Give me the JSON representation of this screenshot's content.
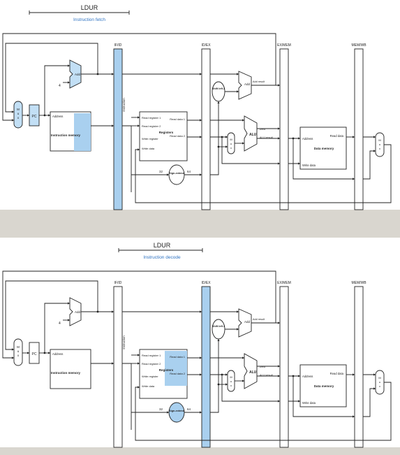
{
  "diagrams": [
    {
      "stage_title": "LDUR",
      "stage_caption": "Instruction fetch",
      "labels": {
        "if_id": "IF/ID",
        "id_ex": "ID/EX",
        "ex_mem": "EX/MEM",
        "mem_wb": "MEM/WB",
        "instruction": "Instruction",
        "add": "Add",
        "add2": "Add",
        "add_result": "Add result",
        "four": "4",
        "mux": "M u x",
        "pc": "PC",
        "address": "Address",
        "imem": "Instruction memory",
        "read_reg1": "Read register 1",
        "read_reg2": "Read register 2",
        "write_reg": "Write register",
        "write_data": "Write data",
        "read_data1": "Read data 1",
        "read_data2": "Read data 2",
        "registers": "Registers",
        "shift": "Shift left 2",
        "alu": "ALU",
        "zero": "Zero",
        "alu_result": "ALU result",
        "sign": "Sign-extend",
        "w32": "32",
        "w64": "64",
        "dmem_address": "Address",
        "dmem_read": "Read data",
        "dmem": "Data memory",
        "dmem_write": "Write data"
      }
    },
    {
      "stage_title": "LDUR",
      "stage_caption": "Instruction decode",
      "labels": {
        "if_id": "IF/ID",
        "id_ex": "ID/EX",
        "ex_mem": "EX/MEM",
        "mem_wb": "MEM/WB",
        "instruction": "Instruction",
        "add": "Add",
        "add2": "Add",
        "add_result": "Add result",
        "four": "4",
        "mux": "M u x",
        "pc": "PC",
        "address": "Address",
        "imem": "Instruction memory",
        "read_reg1": "Read register 1",
        "read_reg2": "Read register 2",
        "write_reg": "Write register",
        "write_data": "Write data",
        "read_data1": "Read data 1",
        "read_data2": "Read data 2",
        "registers": "Registers",
        "shift": "Shift left 2",
        "alu": "ALU",
        "zero": "Zero",
        "alu_result": "ALU result",
        "sign": "Sign-extend",
        "w32": "32",
        "w64": "64",
        "dmem_address": "Address",
        "dmem_read": "Read data",
        "dmem": "Data memory",
        "dmem_write": "Write data"
      }
    }
  ],
  "colors": {
    "paper": "#ffffff",
    "highlight": "#a9d0ef",
    "shade": "#c2dff5",
    "ink": "#222222",
    "caption": "#2f73c2"
  }
}
